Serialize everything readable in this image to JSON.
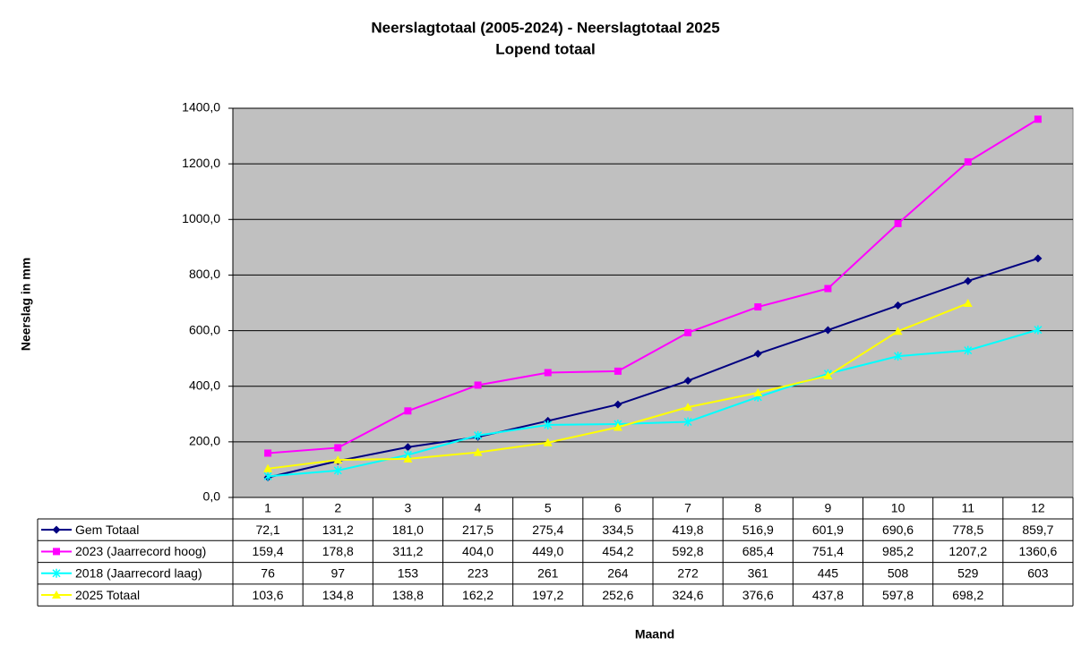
{
  "chart_data": {
    "type": "line",
    "title": "Neerslagtotaal (2005-2024)  - Neerslagtotaal 2025",
    "subtitle": "Lopend totaal",
    "y_label": "Neerslag in mm",
    "x_label": "Maand",
    "categories": [
      "1",
      "2",
      "3",
      "4",
      "5",
      "6",
      "7",
      "8",
      "9",
      "10",
      "11",
      "12"
    ],
    "ylim": [
      0,
      1400
    ],
    "yticks": [
      {
        "value": 0,
        "label": "0,0"
      },
      {
        "value": 200,
        "label": "200,0"
      },
      {
        "value": 400,
        "label": "400,0"
      },
      {
        "value": 600,
        "label": "600,0"
      },
      {
        "value": 800,
        "label": "800,0"
      },
      {
        "value": 1000,
        "label": "1000,0"
      },
      {
        "value": 1200,
        "label": "1200,0"
      },
      {
        "value": 1400,
        "label": "1400,0"
      }
    ],
    "grid": true,
    "plot_background": "#c0c0c0",
    "series": [
      {
        "name": "Gem Totaal",
        "color": "#000080",
        "marker": "diamond",
        "values": [
          72.1,
          131.2,
          181.0,
          217.5,
          275.4,
          334.5,
          419.8,
          516.9,
          601.9,
          690.6,
          778.5,
          859.7
        ],
        "value_labels": [
          "72,1",
          "131,2",
          "181,0",
          "217,5",
          "275,4",
          "334,5",
          "419,8",
          "516,9",
          "601,9",
          "690,6",
          "778,5",
          "859,7"
        ]
      },
      {
        "name": "2023 (Jaarrecord hoog)",
        "color": "#ff00ff",
        "marker": "square",
        "values": [
          159.4,
          178.8,
          311.2,
          404.0,
          449.0,
          454.2,
          592.8,
          685.4,
          751.4,
          985.2,
          1207.2,
          1360.6
        ],
        "value_labels": [
          "159,4",
          "178,8",
          "311,2",
          "404,0",
          "449,0",
          "454,2",
          "592,8",
          "685,4",
          "751,4",
          "985,2",
          "1207,2",
          "1360,6"
        ]
      },
      {
        "name": "2018 (Jaarrecord laag)",
        "color": "#00ffff",
        "marker": "star",
        "values": [
          76,
          97,
          153,
          223,
          261,
          264,
          272,
          361,
          445,
          508,
          529,
          603
        ]
      },
      {
        "name": "2025 Totaal",
        "color": "#ffff00",
        "marker": "triangle",
        "values": [
          103.6,
          134.8,
          138.8,
          162.2,
          197.2,
          252.6,
          324.6,
          376.6,
          437.8,
          597.8,
          698.2,
          null
        ],
        "value_labels": [
          "103,6",
          "134,8",
          "138,8",
          "162,2",
          "197,2",
          "252,6",
          "324,6",
          "376,6",
          "437,8",
          "597,8",
          "698,2",
          null
        ]
      }
    ]
  }
}
